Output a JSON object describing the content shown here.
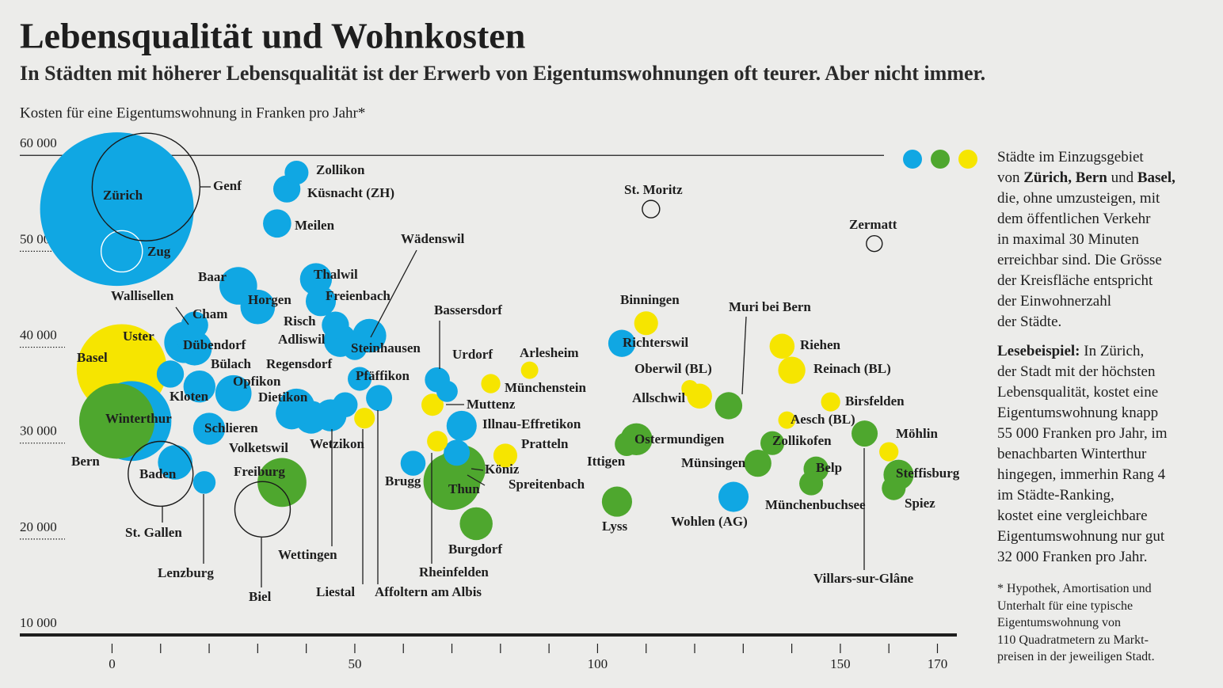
{
  "chart_data": {
    "type": "bubble",
    "title": "Lebensqualität und Wohnkosten",
    "subtitle": "In Städten mit höherer Lebensqualität ist der Erwerb von Eigentumswohnungen oft teurer. Aber nicht immer.",
    "y_label": "Kosten für eine Eigentumswohnung in Franken pro Jahr*",
    "xlim": [
      -19,
      174
    ],
    "ylim": [
      10000,
      62000
    ],
    "xticks": [
      0,
      50,
      100,
      150,
      170
    ],
    "xminorticks": [
      10,
      20,
      30,
      40,
      60,
      70,
      80,
      90,
      110,
      120,
      130,
      140,
      160
    ],
    "yticks": [
      {
        "value": 10000,
        "label": "10 000"
      },
      {
        "value": 20000,
        "label": "20 000"
      },
      {
        "value": 30000,
        "label": "30 000"
      },
      {
        "value": 40000,
        "label": "40 000"
      },
      {
        "value": 50000,
        "label": "50 000"
      },
      {
        "value": 60000,
        "label": "60 000"
      }
    ],
    "series": [
      {
        "color": "#10a7e3",
        "points": [
          {
            "label": "Zürich",
            "x": 1,
            "y": 54400,
            "size": 415000
          },
          {
            "label": "Zug",
            "x": 2,
            "y": 50000,
            "size": 30000,
            "stroke": "#ffffff"
          },
          {
            "label": "Winterthur",
            "x": 4,
            "y": 32300,
            "size": 112000
          },
          {
            "label": "Zollikon",
            "x": 38,
            "y": 58200,
            "size": 10000
          },
          {
            "label": "Küsnacht (ZH)",
            "x": 36,
            "y": 56500,
            "size": 13000
          },
          {
            "label": "Meilen",
            "x": 34,
            "y": 52900,
            "size": 14000
          },
          {
            "label": "Thalwil",
            "x": 42,
            "y": 47100,
            "size": 18000
          },
          {
            "label": "Freienbach",
            "x": 43,
            "y": 44800,
            "size": 16000
          },
          {
            "label": "Baar",
            "x": 26,
            "y": 46400,
            "size": 25000
          },
          {
            "label": "Horgen",
            "x": 30,
            "y": 44200,
            "size": 21000
          },
          {
            "label": "Wädenswil",
            "x": 53,
            "y": 41200,
            "size": 20000
          },
          {
            "label": "Risch",
            "x": 46,
            "y": 42300,
            "size": 13000
          },
          {
            "label": "Adliswil",
            "x": 47,
            "y": 40700,
            "size": 19000
          },
          {
            "label": "Steinhausen",
            "x": 50,
            "y": 39900,
            "size": 10000
          },
          {
            "label": "Wallisellen",
            "x": 17,
            "y": 42300,
            "size": 13000
          },
          {
            "label": "Cham",
            "x": 16,
            "y": 40900,
            "size": 13000
          },
          {
            "label": "Uster",
            "x": 15,
            "y": 40500,
            "size": 30000
          },
          {
            "label": "Dübendorf",
            "x": 17,
            "y": 39900,
            "size": 21000
          },
          {
            "label": "Kloten",
            "x": 12,
            "y": 37200,
            "size": 13000
          },
          {
            "label": "Bülach",
            "x": 18,
            "y": 35900,
            "size": 18000
          },
          {
            "label": "Opfikon",
            "x": 25,
            "y": 35200,
            "size": 23000
          },
          {
            "label": "Regensdorf",
            "x": 48,
            "y": 34000,
            "size": 11000
          },
          {
            "label": "Dietikon",
            "x": 38,
            "y": 33800,
            "size": 23000
          },
          {
            "label": "Volketswil",
            "x": 37,
            "y": 33100,
            "size": 18000
          },
          {
            "label": "Wetzikon",
            "x": 41,
            "y": 32700,
            "size": 19000
          },
          {
            "label": "Wettingen",
            "x": 45,
            "y": 32900,
            "size": 18000
          },
          {
            "label": "Schlieren",
            "x": 20,
            "y": 31500,
            "size": 18000
          },
          {
            "label": "Baden",
            "x": 13,
            "y": 28000,
            "size": 21000
          },
          {
            "label": "Lenzburg",
            "x": 19,
            "y": 25900,
            "size": 9000
          },
          {
            "label": "Pfäffikon",
            "x": 51,
            "y": 36700,
            "size": 10000
          },
          {
            "label": "Affoltern am Albis",
            "x": 55,
            "y": 34700,
            "size": 12000
          },
          {
            "label": "Bassersdorf",
            "x": 67,
            "y": 36600,
            "size": 11000
          },
          {
            "label": "Urdorf",
            "x": 69,
            "y": 35400,
            "size": 8000
          },
          {
            "label": "Illnau-Effretikon",
            "x": 72,
            "y": 31800,
            "size": 16000
          },
          {
            "label": "Brugg",
            "x": 62,
            "y": 27900,
            "size": 11000
          },
          {
            "label": "Spreitenbach",
            "x": 71,
            "y": 29000,
            "size": 12000
          },
          {
            "label": "Richterswil",
            "x": 105,
            "y": 40400,
            "size": 13000
          },
          {
            "label": "Wohlen (AG)",
            "x": 128,
            "y": 24400,
            "size": 16000
          }
        ]
      },
      {
        "color": "#4ea72e",
        "points": [
          {
            "label": "Bern",
            "x": 1,
            "y": 32300,
            "size": 100000
          },
          {
            "label": "Freiburg",
            "x": 35,
            "y": 25900,
            "size": 42000
          },
          {
            "label": "Köniz",
            "x": 72,
            "y": 27300,
            "size": 40000
          },
          {
            "label": "Thun",
            "x": 70,
            "y": 26000,
            "size": 57000
          },
          {
            "label": "Burgdorf",
            "x": 75,
            "y": 21600,
            "size": 19000
          },
          {
            "label": "Ittigen",
            "x": 106,
            "y": 29900,
            "size": 10000
          },
          {
            "label": "Ostermundigen",
            "x": 108,
            "y": 30400,
            "size": 18000
          },
          {
            "label": "Lyss",
            "x": 104,
            "y": 23900,
            "size": 16000
          },
          {
            "label": "Muri bei Bern",
            "x": 127,
            "y": 33900,
            "size": 13000
          },
          {
            "label": "Münsingen",
            "x": 133,
            "y": 27900,
            "size": 13000
          },
          {
            "label": "Zollikofen",
            "x": 136,
            "y": 30000,
            "size": 10000
          },
          {
            "label": "Belp",
            "x": 145,
            "y": 27300,
            "size": 11000
          },
          {
            "label": "Münchenbuchsee",
            "x": 144,
            "y": 25800,
            "size": 10000
          },
          {
            "label": "Villars-sur-Glâne",
            "x": 155,
            "y": 31000,
            "size": 12000
          },
          {
            "label": "Steffisburg",
            "x": 162,
            "y": 26700,
            "size": 16000
          },
          {
            "label": "Spiez",
            "x": 161,
            "y": 25300,
            "size": 10000
          }
        ]
      },
      {
        "color": "#f6e500",
        "points": [
          {
            "label": "Basel",
            "x": 2,
            "y": 37700,
            "size": 143000
          },
          {
            "label": "Binningen",
            "x": 110,
            "y": 42500,
            "size": 10000
          },
          {
            "label": "Riehen",
            "x": 138,
            "y": 40100,
            "size": 11000
          },
          {
            "label": "Reinach (BL)",
            "x": 140,
            "y": 37600,
            "size": 13000
          },
          {
            "label": "Oberwil (BL)",
            "x": 119,
            "y": 35700,
            "size": 5000
          },
          {
            "label": "Allschwil",
            "x": 121,
            "y": 34900,
            "size": 11000
          },
          {
            "label": "Birsfelden",
            "x": 148,
            "y": 34300,
            "size": 6500
          },
          {
            "label": "Aesch (BL)",
            "x": 139,
            "y": 32400,
            "size": 5300
          },
          {
            "label": "Möhlin",
            "x": 160,
            "y": 29100,
            "size": 6500
          },
          {
            "label": "Arlesheim",
            "x": 86,
            "y": 37600,
            "size": 5300
          },
          {
            "label": "Münchenstein",
            "x": 78,
            "y": 36200,
            "size": 6500
          },
          {
            "label": "Muttenz",
            "x": 66,
            "y": 34000,
            "size": 8600
          },
          {
            "label": "Pratteln",
            "x": 81,
            "y": 28700,
            "size": 10000
          },
          {
            "label": "Rheinfelden",
            "x": 67,
            "y": 30200,
            "size": 7500
          },
          {
            "label": "Liestal",
            "x": 52,
            "y": 32600,
            "size": 7500
          }
        ]
      },
      {
        "color": "none",
        "stroke": "#1a1a1a",
        "points": [
          {
            "label": "Genf",
            "x": 7,
            "y": 56700,
            "size": 204000
          },
          {
            "label": "St. Moritz",
            "x": 111,
            "y": 54400,
            "size": 5300
          },
          {
            "label": "Zermatt",
            "x": 157,
            "y": 50800,
            "size": 4400
          },
          {
            "label": "Biel",
            "x": 31,
            "y": 23100,
            "size": 54000
          },
          {
            "label": "St. Gallen",
            "x": 10,
            "y": 26800,
            "size": 74000
          }
        ]
      }
    ],
    "notes": {
      "paragraphs": [
        [
          "Städte im Einzugsgebiet",
          [
            "von ",
            {
              "text": "Zürich, Bern",
              "bold": true
            },
            " und ",
            {
              "text": "Basel,",
              "bold": true
            }
          ],
          "die, ohne umzusteigen, mit",
          "dem öffentlichen Verkehr",
          "in maximal 30 Minuten",
          "erreichbar sind. Die Grösse",
          "der Kreisfläche entspricht",
          "der Einwohnerzahl",
          "der Städte."
        ],
        [
          [
            {
              "text": "Lesebeispiel:",
              "bold": true
            },
            " In Zürich,"
          ],
          "der Stadt mit der höchsten",
          "Lebensqualität, kostet eine",
          "Eigentumswohnung knapp",
          "55 000 Franken pro Jahr, im",
          "benachbarten Winterthur",
          "hingegen, immerhin Rang 4",
          "im Städte-Ranking,",
          "kostet eine vergleichbare",
          "Eigentumswohnung nur gut",
          "32 000 Franken pro Jahr."
        ]
      ],
      "footnote": [
        "* Hypothek, Amortisation und",
        "Unterhalt für eine typische",
        "Eigentumswohnung von",
        "110 Quadratmetern zu Markt-",
        "preisen in der jeweiligen Stadt."
      ]
    }
  }
}
